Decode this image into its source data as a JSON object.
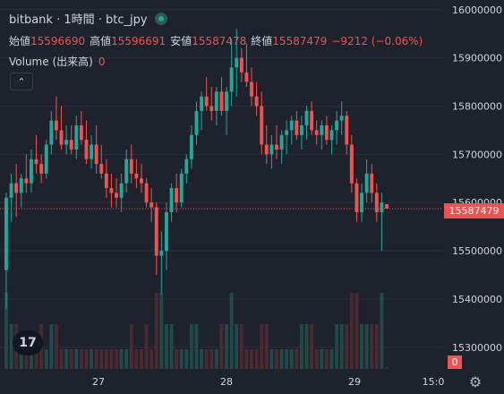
{
  "legend": {
    "title": "bitbank · 1時間 · btc_jpy",
    "ohlc": [
      {
        "key": "始値",
        "value": "15596690"
      },
      {
        "key": "高値",
        "value": "15596691"
      },
      {
        "key": "安値",
        "value": "15587478"
      },
      {
        "key": "終値",
        "value": "15587479"
      }
    ],
    "change": "−9212 (−0.06%)",
    "volume_label": "Volume (出来高)",
    "volume_value": "0"
  },
  "collapse_icon": "chevron-up-icon",
  "logo_text": "17",
  "last_price_label": "15587479",
  "last_volume_label": "0",
  "colors": {
    "background": "#1e222d",
    "up": "#26a69a",
    "down": "#ef5350",
    "up_volume": "#1f4a47",
    "down_volume": "#4a2a30",
    "grid": "#2a2e39"
  },
  "chart_data": {
    "type": "candlestick",
    "y_ticks": [
      15300000,
      15400000,
      15500000,
      15600000,
      15700000,
      15800000,
      15900000,
      16000000
    ],
    "y_tick_labels": [
      "15300000",
      "15400000",
      "15500000",
      "15600000",
      "15700000",
      "15800000",
      "15900000",
      "16000000"
    ],
    "x_tick_labels": [
      "27",
      "28",
      "29",
      "15:0"
    ],
    "ylim": [
      15255000,
      16020000
    ],
    "last_price": 15587479,
    "candles": [
      {
        "o": 15460000,
        "h": 15620000,
        "l": 15380000,
        "c": 15610000,
        "v": "high"
      },
      {
        "o": 15610000,
        "h": 15660000,
        "l": 15560000,
        "c": 15640000,
        "v": "mid"
      },
      {
        "o": 15640000,
        "h": 15680000,
        "l": 15570000,
        "c": 15620000,
        "v": "mid"
      },
      {
        "o": 15620000,
        "h": 15660000,
        "l": 15590000,
        "c": 15650000,
        "v": "low"
      },
      {
        "o": 15650000,
        "h": 15700000,
        "l": 15620000,
        "c": 15640000,
        "v": "low"
      },
      {
        "o": 15640000,
        "h": 15710000,
        "l": 15620000,
        "c": 15690000,
        "v": "low"
      },
      {
        "o": 15690000,
        "h": 15740000,
        "l": 15660000,
        "c": 15680000,
        "v": "low"
      },
      {
        "o": 15680000,
        "h": 15700000,
        "l": 15640000,
        "c": 15660000,
        "v": "mid"
      },
      {
        "o": 15660000,
        "h": 15730000,
        "l": 15650000,
        "c": 15720000,
        "v": "low"
      },
      {
        "o": 15720000,
        "h": 15790000,
        "l": 15700000,
        "c": 15770000,
        "v": "mid"
      },
      {
        "o": 15770000,
        "h": 15820000,
        "l": 15730000,
        "c": 15750000,
        "v": "mid"
      },
      {
        "o": 15750000,
        "h": 15800000,
        "l": 15710000,
        "c": 15720000,
        "v": "low"
      },
      {
        "o": 15720000,
        "h": 15760000,
        "l": 15700000,
        "c": 15730000,
        "v": "low"
      },
      {
        "o": 15730000,
        "h": 15760000,
        "l": 15700000,
        "c": 15710000,
        "v": "low"
      },
      {
        "o": 15710000,
        "h": 15780000,
        "l": 15690000,
        "c": 15760000,
        "v": "low"
      },
      {
        "o": 15760000,
        "h": 15790000,
        "l": 15720000,
        "c": 15730000,
        "v": "low"
      },
      {
        "o": 15730000,
        "h": 15770000,
        "l": 15680000,
        "c": 15690000,
        "v": "low"
      },
      {
        "o": 15690000,
        "h": 15740000,
        "l": 15670000,
        "c": 15720000,
        "v": "low"
      },
      {
        "o": 15720000,
        "h": 15760000,
        "l": 15660000,
        "c": 15680000,
        "v": "low"
      },
      {
        "o": 15680000,
        "h": 15720000,
        "l": 15650000,
        "c": 15660000,
        "v": "low"
      },
      {
        "o": 15660000,
        "h": 15690000,
        "l": 15610000,
        "c": 15630000,
        "v": "low"
      },
      {
        "o": 15630000,
        "h": 15660000,
        "l": 15590000,
        "c": 15620000,
        "v": "low"
      },
      {
        "o": 15620000,
        "h": 15650000,
        "l": 15590000,
        "c": 15610000,
        "v": "low"
      },
      {
        "o": 15610000,
        "h": 15660000,
        "l": 15580000,
        "c": 15640000,
        "v": "low"
      },
      {
        "o": 15640000,
        "h": 15710000,
        "l": 15620000,
        "c": 15690000,
        "v": "low"
      },
      {
        "o": 15690000,
        "h": 15720000,
        "l": 15640000,
        "c": 15660000,
        "v": "mid"
      },
      {
        "o": 15660000,
        "h": 15690000,
        "l": 15630000,
        "c": 15650000,
        "v": "low"
      },
      {
        "o": 15650000,
        "h": 15680000,
        "l": 15620000,
        "c": 15640000,
        "v": "low"
      },
      {
        "o": 15640000,
        "h": 15650000,
        "l": 15590000,
        "c": 15600000,
        "v": "mid"
      },
      {
        "o": 15600000,
        "h": 15630000,
        "l": 15560000,
        "c": 15590000,
        "v": "low"
      },
      {
        "o": 15590000,
        "h": 15600000,
        "l": 15450000,
        "c": 15490000,
        "v": "high"
      },
      {
        "o": 15490000,
        "h": 15540000,
        "l": 15410000,
        "c": 15500000,
        "v": "high"
      },
      {
        "o": 15500000,
        "h": 15600000,
        "l": 15460000,
        "c": 15580000,
        "v": "mid"
      },
      {
        "o": 15580000,
        "h": 15640000,
        "l": 15560000,
        "c": 15630000,
        "v": "mid"
      },
      {
        "o": 15630000,
        "h": 15660000,
        "l": 15580000,
        "c": 15600000,
        "v": "low"
      },
      {
        "o": 15600000,
        "h": 15670000,
        "l": 15590000,
        "c": 15660000,
        "v": "low"
      },
      {
        "o": 15660000,
        "h": 15700000,
        "l": 15640000,
        "c": 15690000,
        "v": "low"
      },
      {
        "o": 15690000,
        "h": 15760000,
        "l": 15670000,
        "c": 15740000,
        "v": "mid"
      },
      {
        "o": 15740000,
        "h": 15810000,
        "l": 15720000,
        "c": 15790000,
        "v": "mid"
      },
      {
        "o": 15790000,
        "h": 15830000,
        "l": 15750000,
        "c": 15820000,
        "v": "low"
      },
      {
        "o": 15820000,
        "h": 15860000,
        "l": 15790000,
        "c": 15800000,
        "v": "low"
      },
      {
        "o": 15800000,
        "h": 15840000,
        "l": 15770000,
        "c": 15790000,
        "v": "low"
      },
      {
        "o": 15790000,
        "h": 15840000,
        "l": 15760000,
        "c": 15830000,
        "v": "low"
      },
      {
        "o": 15830000,
        "h": 15860000,
        "l": 15780000,
        "c": 15790000,
        "v": "mid"
      },
      {
        "o": 15790000,
        "h": 15840000,
        "l": 15740000,
        "c": 15830000,
        "v": "mid"
      },
      {
        "o": 15830000,
        "h": 15940000,
        "l": 15800000,
        "c": 15880000,
        "v": "high"
      },
      {
        "o": 15880000,
        "h": 15960000,
        "l": 15820000,
        "c": 15900000,
        "v": "mid"
      },
      {
        "o": 15900000,
        "h": 15920000,
        "l": 15850000,
        "c": 15870000,
        "v": "mid"
      },
      {
        "o": 15870000,
        "h": 15930000,
        "l": 15840000,
        "c": 15850000,
        "v": "low"
      },
      {
        "o": 15850000,
        "h": 15880000,
        "l": 15800000,
        "c": 15820000,
        "v": "low"
      },
      {
        "o": 15820000,
        "h": 15850000,
        "l": 15780000,
        "c": 15800000,
        "v": "low"
      },
      {
        "o": 15800000,
        "h": 15830000,
        "l": 15700000,
        "c": 15720000,
        "v": "mid"
      },
      {
        "o": 15720000,
        "h": 15760000,
        "l": 15680000,
        "c": 15700000,
        "v": "mid"
      },
      {
        "o": 15700000,
        "h": 15740000,
        "l": 15670000,
        "c": 15720000,
        "v": "low"
      },
      {
        "o": 15720000,
        "h": 15760000,
        "l": 15690000,
        "c": 15710000,
        "v": "low"
      },
      {
        "o": 15710000,
        "h": 15750000,
        "l": 15680000,
        "c": 15740000,
        "v": "low"
      },
      {
        "o": 15740000,
        "h": 15770000,
        "l": 15700000,
        "c": 15750000,
        "v": "low"
      },
      {
        "o": 15750000,
        "h": 15780000,
        "l": 15720000,
        "c": 15770000,
        "v": "low"
      },
      {
        "o": 15770000,
        "h": 15790000,
        "l": 15730000,
        "c": 15740000,
        "v": "low"
      },
      {
        "o": 15740000,
        "h": 15780000,
        "l": 15710000,
        "c": 15760000,
        "v": "mid"
      },
      {
        "o": 15760000,
        "h": 15800000,
        "l": 15730000,
        "c": 15790000,
        "v": "mid"
      },
      {
        "o": 15790000,
        "h": 15810000,
        "l": 15740000,
        "c": 15750000,
        "v": "mid"
      },
      {
        "o": 15750000,
        "h": 15770000,
        "l": 15720000,
        "c": 15740000,
        "v": "low"
      },
      {
        "o": 15740000,
        "h": 15770000,
        "l": 15710000,
        "c": 15760000,
        "v": "low"
      },
      {
        "o": 15760000,
        "h": 15780000,
        "l": 15720000,
        "c": 15730000,
        "v": "low"
      },
      {
        "o": 15730000,
        "h": 15760000,
        "l": 15700000,
        "c": 15750000,
        "v": "low"
      },
      {
        "o": 15750000,
        "h": 15790000,
        "l": 15720000,
        "c": 15770000,
        "v": "mid"
      },
      {
        "o": 15770000,
        "h": 15810000,
        "l": 15740000,
        "c": 15780000,
        "v": "mid"
      },
      {
        "o": 15780000,
        "h": 15790000,
        "l": 15700000,
        "c": 15720000,
        "v": "mid"
      },
      {
        "o": 15720000,
        "h": 15740000,
        "l": 15620000,
        "c": 15640000,
        "v": "high"
      },
      {
        "o": 15640000,
        "h": 15650000,
        "l": 15560000,
        "c": 15580000,
        "v": "high"
      },
      {
        "o": 15580000,
        "h": 15640000,
        "l": 15560000,
        "c": 15620000,
        "v": "mid"
      },
      {
        "o": 15620000,
        "h": 15690000,
        "l": 15600000,
        "c": 15660000,
        "v": "mid"
      },
      {
        "o": 15660000,
        "h": 15680000,
        "l": 15600000,
        "c": 15620000,
        "v": "mid"
      },
      {
        "o": 15620000,
        "h": 15640000,
        "l": 15560000,
        "c": 15580000,
        "v": "mid"
      },
      {
        "o": 15580000,
        "h": 15620000,
        "l": 15500000,
        "c": 15600000,
        "v": "high"
      },
      {
        "o": 15596690,
        "h": 15596691,
        "l": 15587478,
        "c": 15587479,
        "v": "zero"
      }
    ]
  }
}
